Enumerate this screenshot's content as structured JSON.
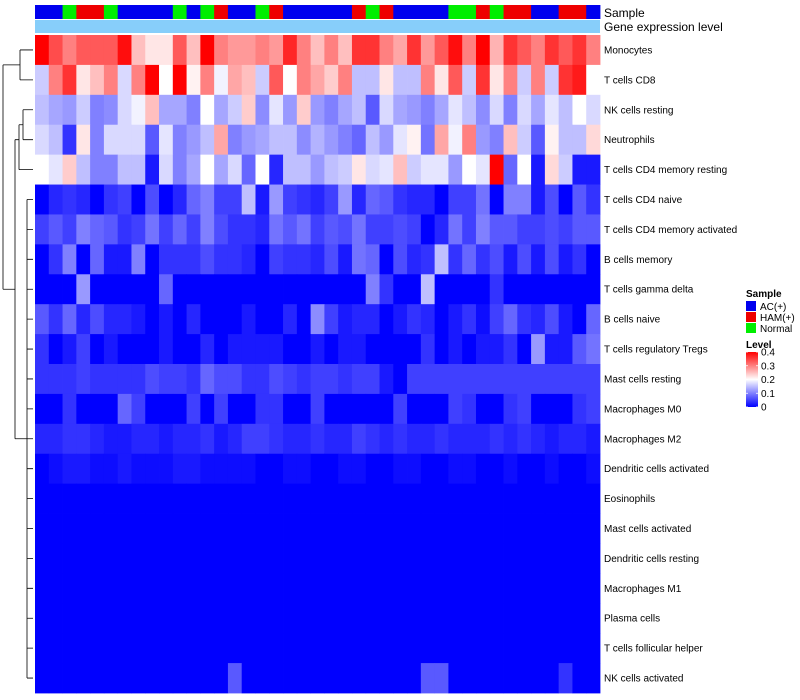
{
  "chart_data": {
    "type": "heatmap",
    "annotation_labels": {
      "sample": "Sample",
      "gene_expression": "Gene expression level"
    },
    "sample_groups": [
      "A",
      "A",
      "N",
      "H",
      "H",
      "N",
      "A",
      "A",
      "A",
      "A",
      "N",
      "A",
      "N",
      "H",
      "A",
      "A",
      "N",
      "H",
      "A",
      "A",
      "A",
      "A",
      "A",
      "H",
      "N",
      "H",
      "A",
      "A",
      "A",
      "A",
      "N",
      "N",
      "H",
      "N",
      "H",
      "H",
      "A",
      "A",
      "H",
      "H",
      "A"
    ],
    "group_colors": {
      "A": "#0000ee",
      "H": "#ee0000",
      "N": "#00ee00"
    },
    "rows": [
      {
        "name": "Monocytes",
        "values": [
          0.4,
          0.34,
          0.3,
          0.33,
          0.33,
          0.33,
          0.39,
          0.25,
          0.22,
          0.22,
          0.33,
          0.25,
          0.4,
          0.3,
          0.28,
          0.28,
          0.3,
          0.28,
          0.37,
          0.3,
          0.25,
          0.3,
          0.25,
          0.36,
          0.36,
          0.3,
          0.27,
          0.36,
          0.28,
          0.33,
          0.39,
          0.3,
          0.4,
          0.26,
          0.36,
          0.33,
          0.3,
          0.36,
          0.33,
          0.36,
          0.3
        ]
      },
      {
        "name": "T cells CD8",
        "values": [
          0.16,
          0.3,
          0.36,
          0.22,
          0.25,
          0.3,
          0.17,
          0.3,
          0.4,
          0.2,
          0.4,
          0.21,
          0.3,
          0.19,
          0.27,
          0.25,
          0.16,
          0.33,
          0.2,
          0.3,
          0.27,
          0.24,
          0.3,
          0.15,
          0.15,
          0.22,
          0.15,
          0.15,
          0.3,
          0.22,
          0.33,
          0.16,
          0.36,
          0.22,
          0.3,
          0.16,
          0.3,
          0.16,
          0.36,
          0.38,
          0.2
        ]
      },
      {
        "name": "NK cells resting",
        "values": [
          0.15,
          0.13,
          0.12,
          0.16,
          0.1,
          0.11,
          0.17,
          0.19,
          0.25,
          0.13,
          0.13,
          0.1,
          0.2,
          0.13,
          0.16,
          0.24,
          0.11,
          0.18,
          0.12,
          0.24,
          0.12,
          0.1,
          0.13,
          0.15,
          0.07,
          0.17,
          0.13,
          0.12,
          0.1,
          0.13,
          0.18,
          0.15,
          0.11,
          0.17,
          0.1,
          0.17,
          0.13,
          0.18,
          0.15,
          0.2,
          0.17
        ]
      },
      {
        "name": "Neutrophils",
        "values": [
          0.17,
          0.15,
          0.04,
          0.22,
          0.1,
          0.17,
          0.17,
          0.17,
          0.07,
          0.18,
          0.1,
          0.12,
          0.15,
          0.27,
          0.1,
          0.12,
          0.13,
          0.15,
          0.15,
          0.11,
          0.14,
          0.12,
          0.1,
          0.08,
          0.15,
          0.12,
          0.18,
          0.21,
          0.09,
          0.27,
          0.19,
          0.3,
          0.12,
          0.1,
          0.25,
          0.16,
          0.07,
          0.21,
          0.15,
          0.15,
          0.23
        ]
      },
      {
        "name": "T cells CD4 memory resting",
        "values": [
          0.2,
          0.18,
          0.24,
          0.15,
          0.1,
          0.1,
          0.15,
          0.15,
          0.02,
          0.17,
          0.1,
          0.13,
          0.2,
          0.13,
          0.17,
          0.08,
          0.2,
          0.03,
          0.15,
          0.15,
          0.12,
          0.15,
          0.16,
          0.22,
          0.17,
          0.18,
          0.25,
          0.16,
          0.18,
          0.18,
          0.12,
          0.2,
          0.18,
          0.4,
          0.08,
          0.2,
          0.02,
          0.23,
          0.16,
          0.02,
          0.02
        ]
      },
      {
        "name": "T cells CD4 naive",
        "values": [
          0.0,
          0.03,
          0.04,
          0.03,
          0.0,
          0.04,
          0.05,
          0.0,
          0.06,
          0.0,
          0.03,
          0.08,
          0.1,
          0.05,
          0.05,
          0.15,
          0.02,
          0.12,
          0.05,
          0.04,
          0.03,
          0.05,
          0.12,
          0.03,
          0.08,
          0.07,
          0.04,
          0.03,
          0.03,
          0.0,
          0.05,
          0.05,
          0.09,
          0.0,
          0.1,
          0.1,
          0.02,
          0.06,
          0.0,
          0.07,
          0.04
        ]
      },
      {
        "name": "T cells CD4 memory activated",
        "values": [
          0.05,
          0.07,
          0.05,
          0.1,
          0.08,
          0.07,
          0.04,
          0.05,
          0.09,
          0.05,
          0.08,
          0.05,
          0.1,
          0.06,
          0.04,
          0.04,
          0.03,
          0.09,
          0.07,
          0.09,
          0.05,
          0.07,
          0.06,
          0.09,
          0.05,
          0.05,
          0.06,
          0.05,
          0.0,
          0.03,
          0.09,
          0.05,
          0.1,
          0.07,
          0.07,
          0.05,
          0.05,
          0.06,
          0.05,
          0.07,
          0.07
        ]
      },
      {
        "name": "B cells memory",
        "values": [
          0.0,
          0.04,
          0.1,
          0.0,
          0.08,
          0.02,
          0.02,
          0.1,
          0.0,
          0.04,
          0.04,
          0.04,
          0.06,
          0.04,
          0.04,
          0.03,
          0.0,
          0.05,
          0.04,
          0.04,
          0.03,
          0.06,
          0.02,
          0.09,
          0.08,
          0.0,
          0.06,
          0.03,
          0.04,
          0.15,
          0.04,
          0.08,
          0.04,
          0.06,
          0.02,
          0.06,
          0.02,
          0.06,
          0.02,
          0.04,
          0.0
        ]
      },
      {
        "name": "T cells gamma delta",
        "values": [
          0.0,
          0.0,
          0.0,
          0.12,
          0.0,
          0.0,
          0.0,
          0.0,
          0.0,
          0.08,
          0.0,
          0.0,
          0.0,
          0.0,
          0.0,
          0.0,
          0.0,
          0.0,
          0.0,
          0.0,
          0.0,
          0.0,
          0.0,
          0.0,
          0.1,
          0.04,
          0.0,
          0.0,
          0.15,
          0.0,
          0.0,
          0.0,
          0.0,
          0.04,
          0.0,
          0.0,
          0.0,
          0.0,
          0.0,
          0.0,
          0.0
        ]
      },
      {
        "name": "B cells naive",
        "values": [
          0.07,
          0.04,
          0.08,
          0.03,
          0.06,
          0.03,
          0.03,
          0.02,
          0.0,
          0.02,
          0.0,
          0.03,
          0.0,
          0.0,
          0.0,
          0.02,
          0.0,
          0.0,
          0.03,
          0.0,
          0.11,
          0.05,
          0.02,
          0.03,
          0.03,
          0.0,
          0.02,
          0.04,
          0.03,
          0.0,
          0.02,
          0.04,
          0.01,
          0.05,
          0.08,
          0.04,
          0.03,
          0.06,
          0.02,
          0.0,
          0.08
        ]
      },
      {
        "name": "T cells regulatory  Tregs",
        "values": [
          0.04,
          0.0,
          0.02,
          0.05,
          0.0,
          0.02,
          0.0,
          0.0,
          0.0,
          0.02,
          0.0,
          0.0,
          0.03,
          0.0,
          0.02,
          0.02,
          0.02,
          0.02,
          0.0,
          0.0,
          0.02,
          0.0,
          0.02,
          0.02,
          0.0,
          0.0,
          0.0,
          0.0,
          0.04,
          0.0,
          0.02,
          0.0,
          0.02,
          0.02,
          0.04,
          0.0,
          0.12,
          0.02,
          0.02,
          0.07,
          0.09
        ]
      },
      {
        "name": "Mast cells resting",
        "values": [
          0.04,
          0.04,
          0.04,
          0.05,
          0.04,
          0.04,
          0.04,
          0.04,
          0.06,
          0.05,
          0.05,
          0.04,
          0.08,
          0.06,
          0.06,
          0.04,
          0.04,
          0.06,
          0.05,
          0.04,
          0.05,
          0.05,
          0.04,
          0.05,
          0.05,
          0.02,
          0.0,
          0.05,
          0.05,
          0.05,
          0.05,
          0.05,
          0.05,
          0.05,
          0.05,
          0.05,
          0.05,
          0.05,
          0.05,
          0.05,
          0.05
        ]
      },
      {
        "name": "Macrophages M0",
        "values": [
          0.0,
          0.0,
          0.04,
          0.0,
          0.0,
          0.0,
          0.08,
          0.05,
          0.0,
          0.0,
          0.0,
          0.05,
          0.0,
          0.05,
          0.0,
          0.0,
          0.04,
          0.04,
          0.0,
          0.0,
          0.05,
          0.0,
          0.0,
          0.0,
          0.0,
          0.0,
          0.05,
          0.0,
          0.0,
          0.0,
          0.05,
          0.04,
          0.0,
          0.0,
          0.04,
          0.05,
          0.0,
          0.0,
          0.0,
          0.04,
          0.05
        ]
      },
      {
        "name": "Macrophages M2",
        "values": [
          0.03,
          0.03,
          0.04,
          0.04,
          0.03,
          0.02,
          0.02,
          0.03,
          0.03,
          0.02,
          0.03,
          0.03,
          0.04,
          0.02,
          0.03,
          0.05,
          0.05,
          0.04,
          0.03,
          0.03,
          0.04,
          0.03,
          0.03,
          0.05,
          0.04,
          0.03,
          0.04,
          0.03,
          0.03,
          0.04,
          0.03,
          0.03,
          0.03,
          0.04,
          0.03,
          0.04,
          0.03,
          0.02,
          0.03,
          0.03,
          0.02
        ]
      },
      {
        "name": "Dendritic cells activated",
        "values": [
          0.0,
          0.01,
          0.02,
          0.02,
          0.01,
          0.01,
          0.02,
          0.01,
          0.01,
          0.01,
          0.02,
          0.02,
          0.01,
          0.01,
          0.01,
          0.01,
          0.0,
          0.0,
          0.01,
          0.01,
          0.0,
          0.0,
          0.01,
          0.01,
          0.0,
          0.0,
          0.01,
          0.01,
          0.0,
          0.0,
          0.01,
          0.01,
          0.0,
          0.0,
          0.01,
          0.0,
          0.0,
          0.01,
          0.0,
          0.0,
          0.01
        ]
      },
      {
        "name": "Eosinophils",
        "values": [
          0.0,
          0.0,
          0.0,
          0.0,
          0.0,
          0.0,
          0.0,
          0.0,
          0.0,
          0.0,
          0.0,
          0.0,
          0.0,
          0.0,
          0.0,
          0.0,
          0.0,
          0.0,
          0.0,
          0.0,
          0.0,
          0.0,
          0.0,
          0.0,
          0.0,
          0.0,
          0.0,
          0.0,
          0.0,
          0.0,
          0.0,
          0.0,
          0.0,
          0.0,
          0.0,
          0.0,
          0.0,
          0.0,
          0.0,
          0.0,
          0.0
        ]
      },
      {
        "name": "Mast cells activated",
        "values": [
          0.0,
          0.0,
          0.0,
          0.0,
          0.0,
          0.0,
          0.0,
          0.0,
          0.0,
          0.0,
          0.0,
          0.0,
          0.0,
          0.0,
          0.0,
          0.0,
          0.0,
          0.0,
          0.0,
          0.0,
          0.0,
          0.0,
          0.0,
          0.0,
          0.0,
          0.0,
          0.0,
          0.0,
          0.0,
          0.0,
          0.0,
          0.0,
          0.0,
          0.0,
          0.0,
          0.0,
          0.0,
          0.0,
          0.0,
          0.0,
          0.0
        ]
      },
      {
        "name": "Dendritic cells resting",
        "values": [
          0.0,
          0.0,
          0.0,
          0.0,
          0.0,
          0.0,
          0.0,
          0.0,
          0.0,
          0.0,
          0.0,
          0.0,
          0.0,
          0.0,
          0.0,
          0.0,
          0.0,
          0.0,
          0.0,
          0.0,
          0.0,
          0.0,
          0.0,
          0.0,
          0.0,
          0.0,
          0.0,
          0.0,
          0.0,
          0.0,
          0.0,
          0.0,
          0.0,
          0.0,
          0.0,
          0.0,
          0.0,
          0.0,
          0.0,
          0.0,
          0.0
        ]
      },
      {
        "name": "Macrophages M1",
        "values": [
          0.0,
          0.0,
          0.0,
          0.0,
          0.0,
          0.0,
          0.0,
          0.0,
          0.0,
          0.0,
          0.0,
          0.0,
          0.0,
          0.0,
          0.0,
          0.0,
          0.0,
          0.0,
          0.0,
          0.0,
          0.0,
          0.0,
          0.0,
          0.0,
          0.0,
          0.0,
          0.0,
          0.0,
          0.0,
          0.0,
          0.0,
          0.0,
          0.0,
          0.0,
          0.0,
          0.0,
          0.0,
          0.0,
          0.0,
          0.0,
          0.0
        ]
      },
      {
        "name": "Plasma cells",
        "values": [
          0.0,
          0.0,
          0.0,
          0.0,
          0.0,
          0.0,
          0.0,
          0.0,
          0.0,
          0.0,
          0.0,
          0.0,
          0.0,
          0.0,
          0.0,
          0.0,
          0.0,
          0.0,
          0.0,
          0.0,
          0.0,
          0.0,
          0.0,
          0.0,
          0.0,
          0.0,
          0.0,
          0.0,
          0.0,
          0.0,
          0.0,
          0.0,
          0.0,
          0.0,
          0.0,
          0.0,
          0.0,
          0.0,
          0.0,
          0.0,
          0.0
        ]
      },
      {
        "name": "T cells follicular helper",
        "values": [
          0.0,
          0.0,
          0.0,
          0.0,
          0.0,
          0.0,
          0.0,
          0.0,
          0.0,
          0.0,
          0.0,
          0.0,
          0.0,
          0.0,
          0.0,
          0.0,
          0.0,
          0.0,
          0.0,
          0.0,
          0.0,
          0.0,
          0.0,
          0.0,
          0.0,
          0.0,
          0.0,
          0.0,
          0.0,
          0.0,
          0.0,
          0.0,
          0.0,
          0.0,
          0.0,
          0.0,
          0.0,
          0.0,
          0.0,
          0.0,
          0.0
        ]
      },
      {
        "name": "NK cells activated",
        "values": [
          0.0,
          0.0,
          0.0,
          0.0,
          0.0,
          0.0,
          0.0,
          0.0,
          0.0,
          0.0,
          0.0,
          0.0,
          0.0,
          0.0,
          0.07,
          0.0,
          0.0,
          0.0,
          0.0,
          0.0,
          0.0,
          0.0,
          0.0,
          0.0,
          0.0,
          0.0,
          0.0,
          0.0,
          0.07,
          0.07,
          0.0,
          0.0,
          0.0,
          0.0,
          0.0,
          0.0,
          0.0,
          0.0,
          0.04,
          0.0,
          0.0
        ]
      }
    ],
    "color_scale": {
      "min": 0,
      "mid": 0.2,
      "max": 0.4,
      "low_color": "#0000ff",
      "mid_color": "#ffffff",
      "high_color": "#ff0000"
    },
    "legend_sample": {
      "title": "Sample",
      "items": [
        {
          "label": "AC(+)",
          "color": "#0000ee"
        },
        {
          "label": "HAM(+)",
          "color": "#ee0000"
        },
        {
          "label": "Normal",
          "color": "#00ee00"
        }
      ]
    },
    "legend_level": {
      "title": "Level",
      "ticks": [
        {
          "value": 0.4,
          "label": "0.4"
        },
        {
          "value": 0.3,
          "label": "0.3"
        },
        {
          "value": 0.2,
          "label": "0.2"
        },
        {
          "value": 0.1,
          "label": "0.1"
        },
        {
          "value": 0,
          "label": "0"
        }
      ]
    }
  }
}
